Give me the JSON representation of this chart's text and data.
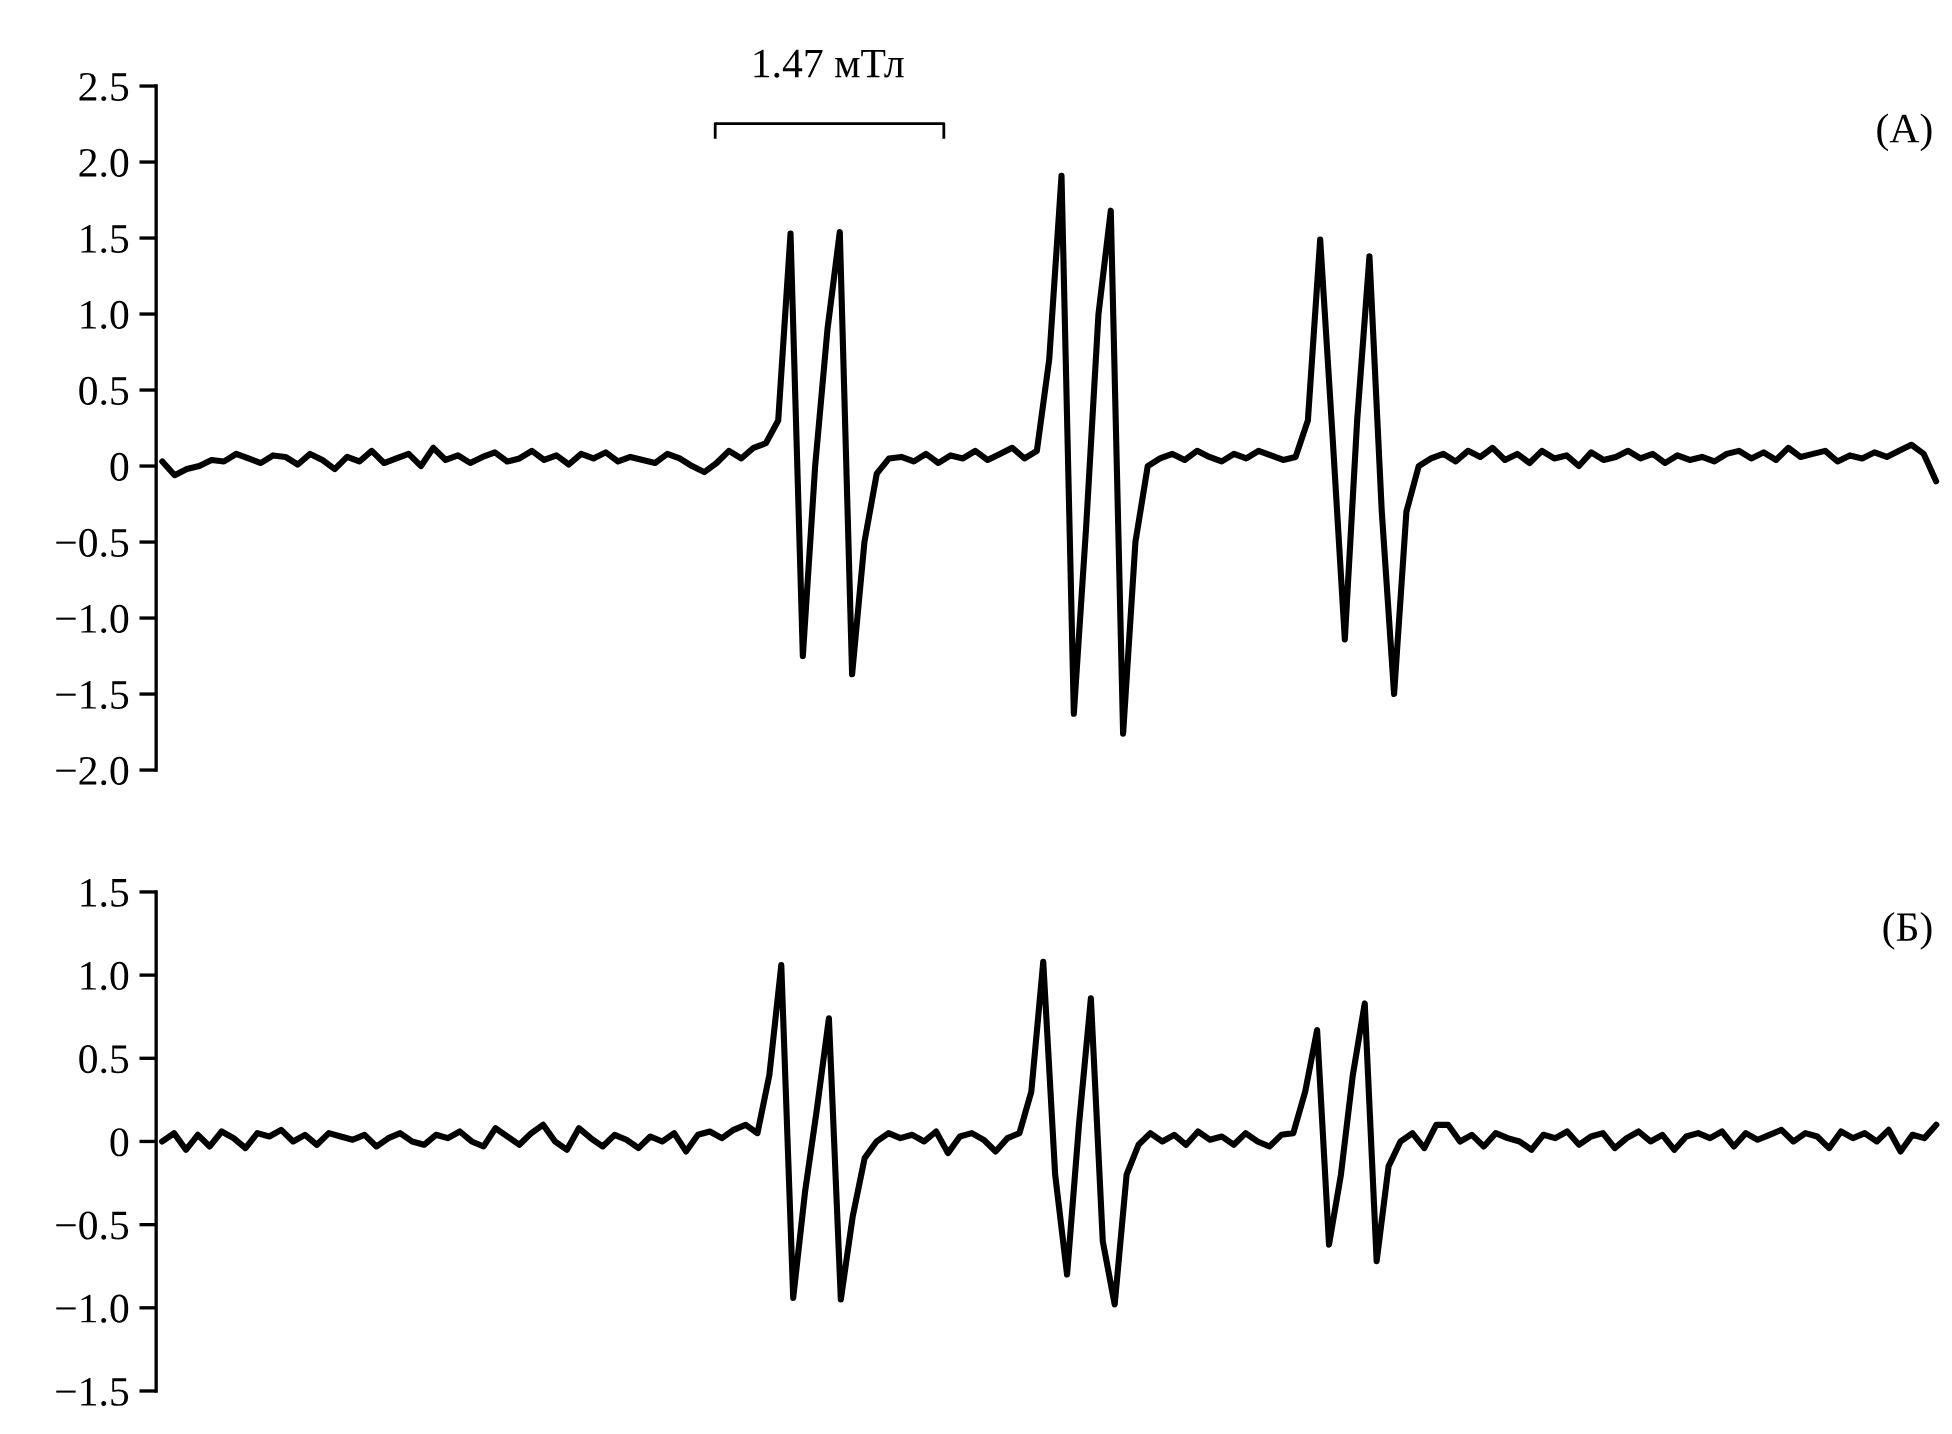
{
  "chart_data": [
    {
      "type": "line",
      "tick_labels": "y",
      "annotations": [
        "1.47 мТл",
        "(А)"
      ],
      "ylim": [
        -2.0,
        2.5
      ],
      "yticks": [
        {
          "value": -2.0,
          "label": "−2.0"
        },
        {
          "value": -1.5,
          "label": "−1.5"
        },
        {
          "value": -1.0,
          "label": "−1.0"
        },
        {
          "value": -0.5,
          "label": "−0.5"
        },
        0,
        0.5,
        {
          "value": 1,
          "label": "1.0"
        },
        1.5,
        {
          "value": 2,
          "label": "2.0"
        },
        2.5
      ],
      "categories": [
        null,
        null,
        null,
        null,
        null,
        null,
        null,
        null,
        null,
        null,
        null,
        null,
        null,
        null,
        null,
        null,
        null,
        null,
        null,
        null,
        null,
        null,
        null,
        null,
        null,
        null,
        null,
        null,
        null,
        null,
        null,
        null,
        null,
        null,
        null,
        null,
        null,
        null,
        null,
        null,
        null,
        null,
        null,
        null,
        null,
        null,
        null,
        null,
        null,
        null,
        null,
        null,
        null,
        null,
        null,
        null,
        null,
        null,
        null,
        null,
        null,
        null,
        null,
        null,
        null,
        null,
        null,
        null,
        null,
        null,
        null,
        null,
        null,
        null,
        null,
        null,
        null,
        null,
        null,
        null,
        null,
        null,
        null,
        null,
        null,
        null,
        null,
        null,
        null,
        null,
        null,
        null,
        null,
        null,
        null,
        null,
        null,
        null,
        null,
        null,
        null,
        null,
        null,
        null,
        null,
        null,
        null,
        null,
        null,
        null,
        null,
        null,
        null,
        null,
        null,
        null,
        null,
        null,
        null,
        null,
        null,
        null,
        null,
        null,
        null,
        null,
        null,
        null,
        null,
        null,
        null,
        null,
        null,
        null,
        null,
        null,
        null,
        null,
        null,
        null,
        null,
        null,
        null,
        null,
        null
      ],
      "series": [
        {
          "color": "#000000",
          "values": [
            0.03,
            -0.06,
            -0.02,
            0.0,
            0.04,
            0.03,
            0.08,
            0.05,
            0.02,
            0.07,
            0.06,
            0.01,
            0.08,
            0.04,
            -0.02,
            0.06,
            0.03,
            0.1,
            0.02,
            0.05,
            0.08,
            0.0,
            0.12,
            0.04,
            0.07,
            0.02,
            0.06,
            0.09,
            0.03,
            0.05,
            0.1,
            0.04,
            0.07,
            0.01,
            0.08,
            0.05,
            0.09,
            0.03,
            0.06,
            0.04,
            0.02,
            0.08,
            0.05,
            0.0,
            -0.04,
            0.02,
            0.1,
            0.05,
            0.12,
            0.15,
            0.3,
            1.53,
            -1.25,
            0.0,
            0.9,
            1.54,
            -1.37,
            -0.5,
            -0.05,
            0.05,
            0.06,
            0.03,
            0.08,
            0.02,
            0.07,
            0.05,
            0.1,
            0.04,
            0.08,
            0.12,
            0.05,
            0.1,
            0.7,
            1.91,
            -1.63,
            -0.4,
            1.0,
            1.68,
            -1.76,
            -0.5,
            0.0,
            0.05,
            0.08,
            0.04,
            0.1,
            0.06,
            0.03,
            0.08,
            0.05,
            0.1,
            0.07,
            0.04,
            0.06,
            0.3,
            1.49,
            0.2,
            -1.14,
            0.3,
            1.38,
            -0.3,
            -1.5,
            -0.3,
            0.0,
            0.05,
            0.08,
            0.03,
            0.1,
            0.06,
            0.12,
            0.04,
            0.08,
            0.02,
            0.1,
            0.05,
            0.07,
            0.0,
            0.09,
            0.04,
            0.06,
            0.1,
            0.05,
            0.08,
            0.02,
            0.07,
            0.04,
            0.06,
            0.03,
            0.08,
            0.1,
            0.05,
            0.09,
            0.04,
            0.12,
            0.06,
            0.08,
            0.1,
            0.03,
            0.07,
            0.05,
            0.09,
            0.06,
            0.1,
            0.14,
            0.08,
            -0.1
          ]
        }
      ]
    },
    {
      "type": "line",
      "tick_labels": "y",
      "annotations": [
        "(Б)"
      ],
      "ylim": [
        -1.5,
        1.5
      ],
      "yticks": [
        {
          "value": -1.5,
          "label": "−1.5"
        },
        {
          "value": -1.0,
          "label": "−1.0"
        },
        {
          "value": -0.5,
          "label": "−0.5"
        },
        0,
        0.5,
        {
          "value": 1,
          "label": "1.0"
        },
        1.5
      ],
      "categories": [
        null,
        null,
        null,
        null,
        null,
        null,
        null,
        null,
        null,
        null,
        null,
        null,
        null,
        null,
        null,
        null,
        null,
        null,
        null,
        null,
        null,
        null,
        null,
        null,
        null,
        null,
        null,
        null,
        null,
        null,
        null,
        null,
        null,
        null,
        null,
        null,
        null,
        null,
        null,
        null,
        null,
        null,
        null,
        null,
        null,
        null,
        null,
        null,
        null,
        null,
        null,
        null,
        null,
        null,
        null,
        null,
        null,
        null,
        null,
        null,
        null,
        null,
        null,
        null,
        null,
        null,
        null,
        null,
        null,
        null,
        null,
        null,
        null,
        null,
        null,
        null,
        null,
        null,
        null,
        null,
        null,
        null,
        null,
        null,
        null,
        null,
        null,
        null,
        null,
        null,
        null,
        null,
        null,
        null,
        null,
        null,
        null,
        null,
        null,
        null,
        null,
        null,
        null,
        null,
        null,
        null,
        null,
        null,
        null,
        null,
        null,
        null,
        null,
        null,
        null,
        null,
        null,
        null,
        null,
        null,
        null,
        null,
        null,
        null,
        null,
        null,
        null,
        null,
        null,
        null,
        null,
        null,
        null,
        null,
        null,
        null,
        null,
        null,
        null,
        null,
        null,
        null,
        null,
        null,
        null,
        null,
        null,
        null,
        null,
        null
      ],
      "series": [
        {
          "color": "#000000",
          "values": [
            0.0,
            0.05,
            -0.05,
            0.04,
            -0.03,
            0.06,
            0.02,
            -0.04,
            0.05,
            0.03,
            0.07,
            0.0,
            0.04,
            -0.02,
            0.05,
            0.03,
            0.01,
            0.04,
            -0.03,
            0.02,
            0.05,
            0.0,
            -0.02,
            0.04,
            0.02,
            0.06,
            0.0,
            -0.03,
            0.08,
            0.03,
            -0.02,
            0.05,
            0.1,
            0.0,
            -0.05,
            0.08,
            0.02,
            -0.03,
            0.04,
            0.01,
            -0.04,
            0.03,
            0.0,
            0.05,
            -0.06,
            0.04,
            0.06,
            0.02,
            0.07,
            0.1,
            0.05,
            0.4,
            1.06,
            -0.94,
            -0.3,
            0.2,
            0.74,
            -0.95,
            -0.45,
            -0.1,
            0.0,
            0.05,
            0.02,
            0.04,
            0.0,
            0.06,
            -0.07,
            0.03,
            0.05,
            0.01,
            -0.06,
            0.02,
            0.05,
            0.3,
            1.08,
            -0.2,
            -0.8,
            0.1,
            0.86,
            -0.6,
            -0.98,
            -0.2,
            -0.02,
            0.05,
            0.0,
            0.04,
            -0.02,
            0.06,
            0.01,
            0.03,
            -0.02,
            0.05,
            0.0,
            -0.03,
            0.04,
            0.05,
            0.3,
            0.67,
            -0.62,
            -0.2,
            0.4,
            0.83,
            -0.72,
            -0.15,
            0.0,
            0.05,
            -0.04,
            0.1,
            0.1,
            0.0,
            0.04,
            -0.03,
            0.05,
            0.02,
            0.0,
            -0.05,
            0.04,
            0.02,
            0.06,
            -0.02,
            0.03,
            0.05,
            -0.04,
            0.02,
            0.06,
            0.0,
            0.04,
            -0.05,
            0.03,
            0.05,
            0.02,
            0.06,
            -0.03,
            0.05,
            0.01,
            0.04,
            0.07,
            0.0,
            0.05,
            0.03,
            -0.04,
            0.06,
            0.02,
            0.05,
            0.0,
            0.07,
            -0.06,
            0.04,
            0.02,
            0.1
          ]
        }
      ]
    }
  ]
}
